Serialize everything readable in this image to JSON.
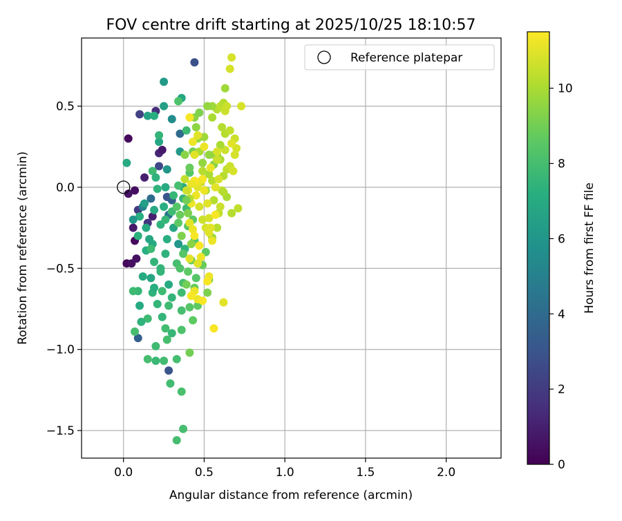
{
  "chart_data": {
    "type": "scatter",
    "title": "FOV centre drift starting at 2025/10/25 18:10:57",
    "xlabel": "Angular distance from reference (arcmin)",
    "ylabel": "Rotation from reference (arcmin)",
    "xlim": [
      -0.26,
      2.34
    ],
    "ylim": [
      -1.67,
      0.92
    ],
    "xticks": [
      0.0,
      0.5,
      1.0,
      1.5,
      2.0
    ],
    "yticks": [
      -1.5,
      -1.0,
      -0.5,
      0.0,
      0.5
    ],
    "xtick_labels": [
      "0.0",
      "0.5",
      "1.0",
      "1.5",
      "2.0"
    ],
    "ytick_labels": [
      "−1.5",
      "−1.0",
      "−0.5",
      "0.0",
      "0.5"
    ],
    "grid": true,
    "legend": {
      "position": "top-right",
      "label": "Reference platepar"
    },
    "reference_point": {
      "x": 0.0,
      "y": 0.0
    },
    "colorbar": {
      "label": "Hours from first FF file",
      "colormap": "viridis",
      "range": [
        0,
        11.5
      ],
      "ticks": [
        0,
        2,
        4,
        6,
        8,
        10
      ],
      "tick_labels": [
        "0",
        "2",
        "4",
        "6",
        "8",
        "10"
      ]
    },
    "points": [
      [
        0.03,
        0.3,
        0.3
      ],
      [
        0.02,
        -0.47,
        0.2
      ],
      [
        0.05,
        -0.47,
        0.5
      ],
      [
        0.07,
        -0.02,
        0.4
      ],
      [
        0.03,
        -0.04,
        0.6
      ],
      [
        0.06,
        -0.25,
        0.8
      ],
      [
        0.07,
        -0.33,
        0.3
      ],
      [
        0.08,
        -0.44,
        0.5
      ],
      [
        0.13,
        0.06,
        1.0
      ],
      [
        0.2,
        0.47,
        1.5
      ],
      [
        0.1,
        0.45,
        2.2
      ],
      [
        0.22,
        0.21,
        1.2
      ],
      [
        0.24,
        0.23,
        0.8
      ],
      [
        0.18,
        -0.18,
        1.0
      ],
      [
        0.15,
        -0.22,
        1.7
      ],
      [
        0.09,
        -0.14,
        2.0
      ],
      [
        0.22,
        0.13,
        2.5
      ],
      [
        0.27,
        -0.06,
        3.0
      ],
      [
        0.44,
        0.77,
        2.8
      ],
      [
        0.09,
        -0.93,
        3.5
      ],
      [
        0.28,
        -1.13,
        3.0
      ],
      [
        0.3,
        -0.08,
        3.5
      ],
      [
        0.17,
        -0.07,
        4.0
      ],
      [
        0.28,
        -0.17,
        4.5
      ],
      [
        0.35,
        0.33,
        4.0
      ],
      [
        0.12,
        -0.12,
        5.0
      ],
      [
        0.25,
        0.65,
        6.2
      ],
      [
        0.25,
        0.5,
        6.5
      ],
      [
        0.22,
        0.28,
        6.8
      ],
      [
        0.27,
        0.11,
        6.0
      ],
      [
        0.36,
        0.55,
        6.8
      ],
      [
        0.3,
        0.42,
        5.5
      ],
      [
        0.35,
        0.22,
        6.2
      ],
      [
        0.02,
        0.15,
        7.0
      ],
      [
        0.15,
        0.44,
        6.6
      ],
      [
        0.19,
        0.44,
        7.2
      ],
      [
        0.22,
        0.32,
        7.5
      ],
      [
        0.39,
        0.35,
        7.8
      ],
      [
        0.34,
        0.53,
        8.2
      ],
      [
        0.37,
        0.0,
        7.0
      ],
      [
        0.18,
        0.1,
        7.8
      ],
      [
        0.2,
        0.06,
        7.4
      ],
      [
        0.13,
        -0.1,
        6.4
      ],
      [
        0.1,
        -0.18,
        7.2
      ],
      [
        0.06,
        -0.2,
        6.0
      ],
      [
        0.09,
        -0.3,
        7.3
      ],
      [
        0.14,
        -0.25,
        7.0
      ],
      [
        0.16,
        -0.32,
        6.8
      ],
      [
        0.12,
        -0.55,
        7.0
      ],
      [
        0.18,
        -0.65,
        7.4
      ],
      [
        0.09,
        -0.64,
        7.6
      ],
      [
        0.06,
        -0.64,
        7.8
      ],
      [
        0.1,
        -0.73,
        7.0
      ],
      [
        0.15,
        -0.81,
        7.8
      ],
      [
        0.11,
        -0.83,
        7.4
      ],
      [
        0.07,
        -0.89,
        8.0
      ],
      [
        0.19,
        -0.62,
        7.2
      ],
      [
        0.24,
        -0.64,
        7.8
      ],
      [
        0.21,
        -0.72,
        7.5
      ],
      [
        0.17,
        -0.56,
        6.8
      ],
      [
        0.28,
        -0.6,
        7.0
      ],
      [
        0.23,
        -0.5,
        7.5
      ],
      [
        0.26,
        -0.41,
        7.4
      ],
      [
        0.33,
        -0.47,
        8.0
      ],
      [
        0.27,
        -0.32,
        7.2
      ],
      [
        0.31,
        -0.25,
        6.8
      ],
      [
        0.34,
        -0.35,
        6.0
      ],
      [
        0.38,
        -0.38,
        7.4
      ],
      [
        0.35,
        -0.5,
        8.2
      ],
      [
        0.37,
        -0.59,
        8.0
      ],
      [
        0.36,
        -0.65,
        7.8
      ],
      [
        0.3,
        -0.68,
        7.5
      ],
      [
        0.28,
        -0.73,
        7.8
      ],
      [
        0.24,
        -0.8,
        7.5
      ],
      [
        0.26,
        -0.87,
        7.9
      ],
      [
        0.27,
        -0.94,
        8.0
      ],
      [
        0.3,
        -0.9,
        7.6
      ],
      [
        0.2,
        -0.98,
        7.8
      ],
      [
        0.2,
        -1.07,
        7.7
      ],
      [
        0.25,
        -1.07,
        7.9
      ],
      [
        0.15,
        -1.06,
        8.0
      ],
      [
        0.33,
        -1.06,
        8.0
      ],
      [
        0.29,
        -1.21,
        7.9
      ],
      [
        0.36,
        -1.26,
        8.1
      ],
      [
        0.37,
        -1.49,
        8.0
      ],
      [
        0.33,
        -1.56,
        8.0
      ],
      [
        0.36,
        -0.88,
        8.2
      ],
      [
        0.36,
        -0.76,
        8.0
      ],
      [
        0.23,
        -0.52,
        7.5
      ],
      [
        0.14,
        -0.39,
        7.2
      ],
      [
        0.18,
        -0.35,
        7.0
      ],
      [
        0.19,
        -0.46,
        7.5
      ],
      [
        0.17,
        -0.38,
        7.8
      ],
      [
        0.23,
        -0.23,
        7.4
      ],
      [
        0.26,
        -0.2,
        7.6
      ],
      [
        0.3,
        -0.15,
        7.8
      ],
      [
        0.31,
        -0.05,
        7.6
      ],
      [
        0.21,
        -0.01,
        7.4
      ],
      [
        0.19,
        -0.14,
        7.0
      ],
      [
        0.25,
        -0.12,
        7.2
      ],
      [
        0.26,
        0.0,
        7.0
      ],
      [
        0.34,
        0.01,
        8.0
      ],
      [
        0.37,
        -0.07,
        7.6
      ],
      [
        0.39,
        -0.13,
        7.8
      ],
      [
        0.41,
        0.09,
        8.4
      ],
      [
        0.43,
        -0.2,
        8.6
      ],
      [
        0.33,
        -0.12,
        8.4
      ],
      [
        0.4,
        -0.24,
        8.4
      ],
      [
        0.44,
        -0.33,
        8.2
      ],
      [
        0.37,
        -0.41,
        8.4
      ],
      [
        0.4,
        -0.52,
        8.6
      ],
      [
        0.42,
        -0.45,
        8.8
      ],
      [
        0.44,
        -0.62,
        8.8
      ],
      [
        0.46,
        -0.73,
        8.6
      ],
      [
        0.41,
        -0.74,
        8.4
      ],
      [
        0.45,
        -0.56,
        8.4
      ],
      [
        0.49,
        -0.48,
        8.8
      ],
      [
        0.51,
        -0.4,
        8.6
      ],
      [
        0.53,
        -0.57,
        9.2
      ],
      [
        0.52,
        -0.65,
        9.2
      ],
      [
        0.41,
        -1.02,
        9.0
      ],
      [
        0.43,
        -0.82,
        8.6
      ],
      [
        0.39,
        -0.6,
        9.0
      ],
      [
        0.42,
        -0.35,
        9.4
      ],
      [
        0.44,
        0.43,
        9.4
      ],
      [
        0.43,
        0.22,
        9.0
      ],
      [
        0.41,
        0.12,
        8.8
      ],
      [
        0.45,
        0.37,
        9.5
      ],
      [
        0.5,
        0.31,
        9.8
      ],
      [
        0.53,
        0.2,
        9.6
      ],
      [
        0.49,
        0.15,
        9.6
      ],
      [
        0.53,
        0.08,
        10.0
      ],
      [
        0.55,
        0.04,
        10.2
      ],
      [
        0.51,
        -0.02,
        9.8
      ],
      [
        0.56,
        -0.08,
        10.2
      ],
      [
        0.59,
        -0.16,
        10.4
      ],
      [
        0.55,
        -0.31,
        9.8
      ],
      [
        0.58,
        -0.25,
        10.2
      ],
      [
        0.6,
        -0.12,
        10.6
      ],
      [
        0.61,
        -0.02,
        10.4
      ],
      [
        0.62,
        0.07,
        10.2
      ],
      [
        0.64,
        0.11,
        10.4
      ],
      [
        0.66,
        0.13,
        10.6
      ],
      [
        0.63,
        0.23,
        10.6
      ],
      [
        0.6,
        0.26,
        10.0
      ],
      [
        0.63,
        0.33,
        10.2
      ],
      [
        0.66,
        0.35,
        10.4
      ],
      [
        0.69,
        0.3,
        10.6
      ],
      [
        0.7,
        0.24,
        10.8
      ],
      [
        0.71,
        -0.13,
        10.4
      ],
      [
        0.67,
        -0.16,
        10.2
      ],
      [
        0.64,
        -0.06,
        10.0
      ],
      [
        0.62,
        -0.03,
        10.2
      ],
      [
        0.6,
        0.17,
        10.0
      ],
      [
        0.58,
        0.2,
        9.8
      ],
      [
        0.56,
        0.2,
        9.6
      ],
      [
        0.56,
        0.14,
        9.4
      ],
      [
        0.55,
        0.43,
        10.0
      ],
      [
        0.58,
        0.48,
        10.2
      ],
      [
        0.6,
        0.5,
        10.4
      ],
      [
        0.62,
        0.52,
        10.2
      ],
      [
        0.63,
        0.47,
        10.6
      ],
      [
        0.64,
        0.5,
        10.6
      ],
      [
        0.66,
        0.73,
        10.8
      ],
      [
        0.67,
        0.8,
        10.8
      ],
      [
        0.63,
        0.61,
        9.8
      ],
      [
        0.67,
        0.27,
        11.0
      ],
      [
        0.68,
        0.1,
        10.8
      ],
      [
        0.69,
        0.2,
        10.8
      ],
      [
        0.73,
        0.5,
        10.8
      ],
      [
        0.61,
        0.37,
        10.2
      ],
      [
        0.55,
        0.5,
        9.8
      ],
      [
        0.52,
        0.5,
        9.6
      ],
      [
        0.47,
        0.46,
        9.2
      ],
      [
        0.46,
        0.3,
        9.6
      ],
      [
        0.47,
        0.22,
        10.0
      ],
      [
        0.49,
        0.1,
        10.2
      ],
      [
        0.48,
        0.03,
        10.6
      ],
      [
        0.46,
        0.0,
        11.0
      ],
      [
        0.45,
        -0.05,
        11.2
      ],
      [
        0.47,
        -0.12,
        10.8
      ],
      [
        0.49,
        -0.2,
        10.6
      ],
      [
        0.51,
        -0.25,
        10.8
      ],
      [
        0.53,
        -0.28,
        11.0
      ],
      [
        0.55,
        -0.33,
        11.2
      ],
      [
        0.54,
        -0.25,
        11.0
      ],
      [
        0.53,
        -0.19,
        10.8
      ],
      [
        0.52,
        -0.1,
        11.0
      ],
      [
        0.5,
        -0.02,
        11.2
      ],
      [
        0.49,
        0.05,
        11.4
      ],
      [
        0.46,
        0.03,
        11.2
      ],
      [
        0.44,
        0.04,
        11.4
      ],
      [
        0.42,
        0.02,
        11.2
      ],
      [
        0.4,
        -0.02,
        11.0
      ],
      [
        0.42,
        -0.1,
        11.2
      ],
      [
        0.41,
        -0.22,
        11.0
      ],
      [
        0.43,
        -0.26,
        11.2
      ],
      [
        0.44,
        -0.3,
        11.4
      ],
      [
        0.41,
        -0.44,
        11.0
      ],
      [
        0.47,
        -0.36,
        11.4
      ],
      [
        0.48,
        -0.43,
        11.2
      ],
      [
        0.46,
        -0.47,
        11.0
      ],
      [
        0.44,
        -0.64,
        11.2
      ],
      [
        0.42,
        -0.67,
        11.4
      ],
      [
        0.46,
        -0.69,
        11.2
      ],
      [
        0.49,
        -0.7,
        11.4
      ],
      [
        0.53,
        -0.55,
        11.2
      ],
      [
        0.52,
        -0.58,
        11.4
      ],
      [
        0.57,
        -0.17,
        11.4
      ],
      [
        0.54,
        0.12,
        11.2
      ],
      [
        0.41,
        0.43,
        11.4
      ],
      [
        0.5,
        0.25,
        11.2
      ],
      [
        0.44,
        0.2,
        11.0
      ],
      [
        0.43,
        0.28,
        11.2
      ],
      [
        0.46,
        0.32,
        11.0
      ],
      [
        0.56,
        -0.87,
        11.4
      ],
      [
        0.62,
        -0.71,
        11.0
      ],
      [
        0.58,
        0.22,
        10.8
      ],
      [
        0.59,
        0.05,
        10.8
      ],
      [
        0.57,
        0.0,
        11.0
      ],
      [
        0.58,
        0.17,
        10.6
      ],
      [
        0.39,
        -0.02,
        10.6
      ],
      [
        0.38,
        0.05,
        10.4
      ],
      [
        0.41,
        -0.07,
        10.2
      ],
      [
        0.38,
        0.2,
        9.4
      ],
      [
        0.36,
        -0.3,
        9.2
      ],
      [
        0.39,
        -0.08,
        9.0
      ],
      [
        0.4,
        -0.16,
        9.2
      ],
      [
        0.35,
        -0.17,
        8.8
      ],
      [
        0.34,
        -0.22,
        8.6
      ]
    ]
  }
}
